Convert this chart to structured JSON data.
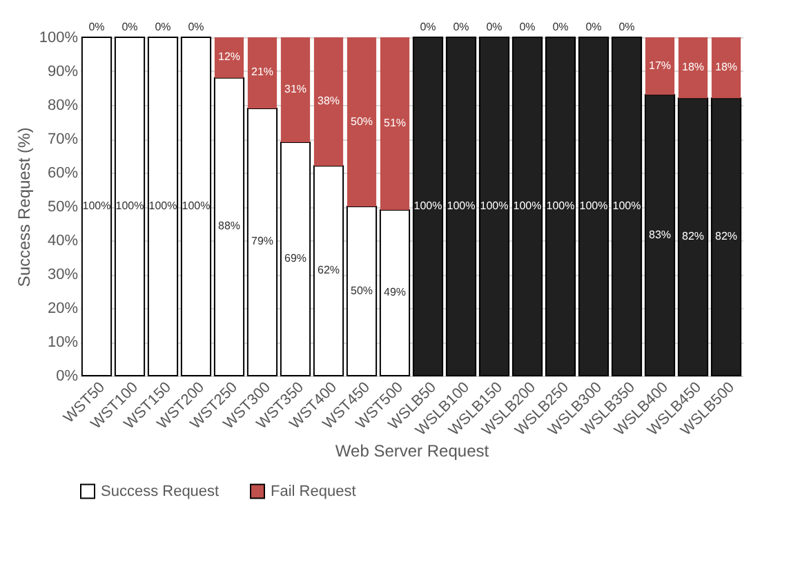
{
  "chart_data": {
    "type": "bar",
    "stacked": true,
    "xlabel": "Web Server Request",
    "ylabel": "Success Request (%)",
    "categories": [
      "WST50",
      "WST100",
      "WST150",
      "WST200",
      "WST250",
      "WST300",
      "WST350",
      "WST400",
      "WST450",
      "WST500",
      "WSLB50",
      "WSLB100",
      "WSLB150",
      "WSLB200",
      "WSLB250",
      "WSLB300",
      "WSLB350",
      "WSLB400",
      "WSLB450",
      "WSLB500"
    ],
    "series": [
      {
        "name": "Success Request",
        "color": "#ffffff",
        "colors": [
          "#ffffff",
          "#ffffff",
          "#ffffff",
          "#ffffff",
          "#ffffff",
          "#ffffff",
          "#ffffff",
          "#ffffff",
          "#ffffff",
          "#ffffff",
          "#202020",
          "#202020",
          "#202020",
          "#202020",
          "#202020",
          "#202020",
          "#202020",
          "#202020",
          "#202020",
          "#202020"
        ],
        "values": [
          100,
          100,
          100,
          100,
          88,
          79,
          69,
          62,
          50,
          49,
          100,
          100,
          100,
          100,
          100,
          100,
          100,
          83,
          82,
          82
        ],
        "value_labels": [
          "100%",
          "100%",
          "100%",
          "100%",
          "88%",
          "79%",
          "69%",
          "62%",
          "50%",
          "49%",
          "100%",
          "100%",
          "100%",
          "100%",
          "100%",
          "100%",
          "100%",
          "83%",
          "82%",
          "82%"
        ]
      },
      {
        "name": "Fail Request",
        "color": "#c0504d",
        "values": [
          0,
          0,
          0,
          0,
          12,
          21,
          31,
          38,
          50,
          51,
          0,
          0,
          0,
          0,
          0,
          0,
          0,
          17,
          18,
          18
        ],
        "value_labels": [
          "0%",
          "0%",
          "0%",
          "0%",
          "12%",
          "21%",
          "31%",
          "38%",
          "50%",
          "51%",
          "0%",
          "0%",
          "0%",
          "0%",
          "0%",
          "0%",
          "0%",
          "17%",
          "18%",
          "18%"
        ]
      }
    ],
    "ylim": [
      0,
      100
    ],
    "yticks": [
      {
        "value": 0,
        "label": "0%"
      },
      {
        "value": 10,
        "label": "10%"
      },
      {
        "value": 20,
        "label": "20%"
      },
      {
        "value": 30,
        "label": "30%"
      },
      {
        "value": 40,
        "label": "40%"
      },
      {
        "value": 50,
        "label": "50%"
      },
      {
        "value": 60,
        "label": "60%"
      },
      {
        "value": 70,
        "label": "70%"
      },
      {
        "value": 80,
        "label": "80%"
      },
      {
        "value": 90,
        "label": "90%"
      },
      {
        "value": 100,
        "label": "100%"
      }
    ],
    "grid": "y",
    "legend": "bottom"
  }
}
